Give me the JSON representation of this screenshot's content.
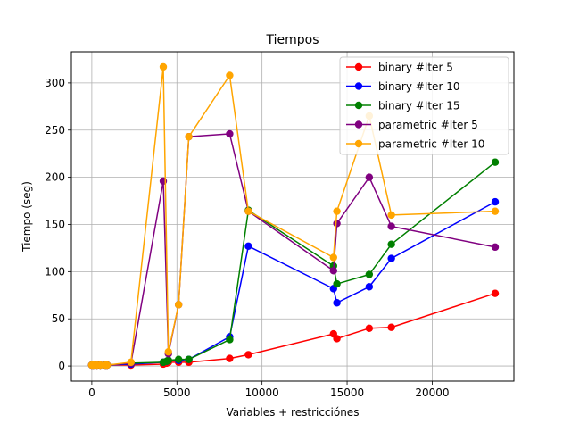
{
  "chart_data": {
    "type": "line",
    "title": "Tiempos",
    "xlabel": "Variables + restricciónes",
    "ylabel": "Tiempo (seg)",
    "xlim": [
      -1200,
      24800
    ],
    "ylim": [
      -16,
      333
    ],
    "x_ticks": [
      0,
      5000,
      10000,
      15000,
      20000
    ],
    "x_tick_labels": [
      "0",
      "5000",
      "10000",
      "15000",
      "20000"
    ],
    "y_ticks": [
      0,
      50,
      100,
      150,
      200,
      250,
      300
    ],
    "y_tick_labels": [
      "0",
      "50",
      "100",
      "150",
      "200",
      "250",
      "300"
    ],
    "grid": true,
    "legend_position": "top-right",
    "series": [
      {
        "name": "binary #Iter 5",
        "color": "#ff0000",
        "points": [
          [
            0,
            1
          ],
          [
            100,
            1
          ],
          [
            300,
            1
          ],
          [
            500,
            1
          ],
          [
            800,
            1
          ],
          [
            900,
            1
          ],
          [
            2300,
            1
          ],
          [
            4200,
            2
          ],
          [
            4400,
            3
          ],
          [
            4500,
            4
          ],
          [
            5100,
            4
          ],
          [
            5700,
            4
          ],
          [
            8100,
            8
          ],
          [
            9200,
            12
          ],
          [
            14200,
            34
          ],
          [
            14400,
            29
          ],
          [
            16300,
            40
          ],
          [
            17600,
            41
          ],
          [
            23700,
            77
          ]
        ]
      },
      {
        "name": "binary #Iter 10",
        "color": "#0000ff",
        "points": [
          [
            0,
            1
          ],
          [
            100,
            1
          ],
          [
            300,
            1
          ],
          [
            500,
            1
          ],
          [
            800,
            1
          ],
          [
            900,
            1
          ],
          [
            2300,
            2
          ],
          [
            4200,
            4
          ],
          [
            4400,
            5
          ],
          [
            4500,
            6
          ],
          [
            5100,
            6
          ],
          [
            5700,
            7
          ],
          [
            8100,
            31
          ],
          [
            9200,
            127
          ],
          [
            14200,
            82
          ],
          [
            14400,
            67
          ],
          [
            16300,
            84
          ],
          [
            17600,
            114
          ],
          [
            23700,
            174
          ]
        ]
      },
      {
        "name": "binary #Iter 15",
        "color": "#008000",
        "points": [
          [
            0,
            1
          ],
          [
            100,
            1
          ],
          [
            300,
            1
          ],
          [
            500,
            1
          ],
          [
            800,
            1
          ],
          [
            900,
            1
          ],
          [
            2300,
            3
          ],
          [
            4200,
            4
          ],
          [
            4400,
            5
          ],
          [
            4500,
            6
          ],
          [
            5100,
            7
          ],
          [
            5700,
            7
          ],
          [
            8100,
            28
          ],
          [
            9200,
            165
          ],
          [
            14200,
            106
          ],
          [
            14400,
            87
          ],
          [
            16300,
            97
          ],
          [
            17600,
            129
          ],
          [
            23700,
            216
          ]
        ]
      },
      {
        "name": "parametric #Iter 5",
        "color": "#800080",
        "points": [
          [
            0,
            1
          ],
          [
            100,
            1
          ],
          [
            300,
            1
          ],
          [
            500,
            1
          ],
          [
            800,
            1
          ],
          [
            900,
            1
          ],
          [
            2300,
            3
          ],
          [
            4200,
            196
          ],
          [
            4500,
            13
          ],
          [
            5100,
            65
          ],
          [
            5700,
            243
          ],
          [
            8100,
            246
          ],
          [
            9200,
            164
          ],
          [
            14200,
            101
          ],
          [
            14400,
            151
          ],
          [
            16300,
            200
          ],
          [
            17600,
            148
          ],
          [
            23700,
            126
          ]
        ]
      },
      {
        "name": "parametric #Iter 10",
        "color": "#ffa500",
        "points": [
          [
            0,
            1
          ],
          [
            100,
            1
          ],
          [
            300,
            1
          ],
          [
            500,
            1
          ],
          [
            800,
            1
          ],
          [
            900,
            1
          ],
          [
            2300,
            4
          ],
          [
            4200,
            317
          ],
          [
            4500,
            15
          ],
          [
            5100,
            65
          ],
          [
            5700,
            243
          ],
          [
            8100,
            308
          ],
          [
            9200,
            164
          ],
          [
            14200,
            115
          ],
          [
            14400,
            164
          ],
          [
            16300,
            265
          ],
          [
            17600,
            160
          ],
          [
            23700,
            164
          ]
        ]
      }
    ]
  }
}
